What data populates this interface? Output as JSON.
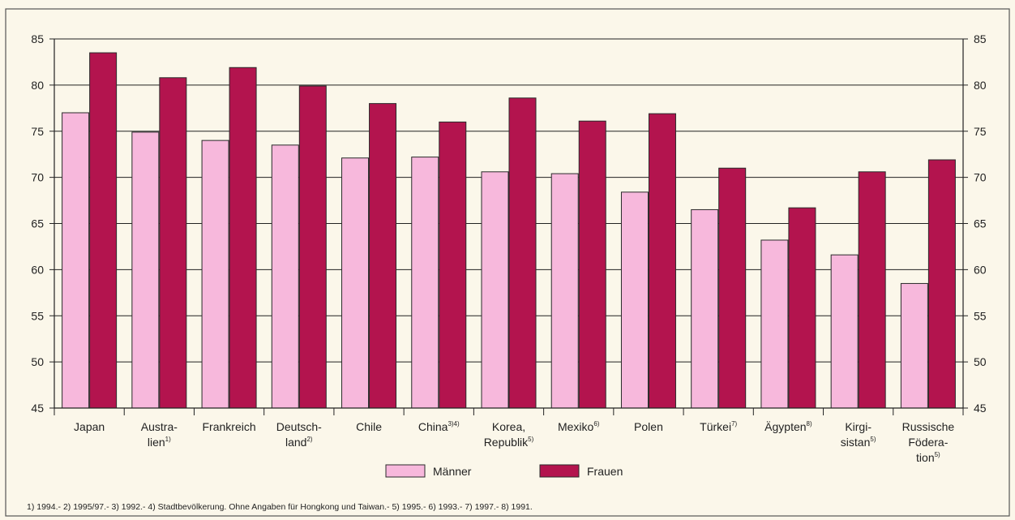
{
  "colors": {
    "maenner": "#f7b8dc",
    "frauen": "#b3144e",
    "background": "#fbf7ea",
    "grid": "#222222"
  },
  "chart_data": {
    "type": "bar",
    "title": "",
    "xlabel": "",
    "ylabel": "",
    "ylim": [
      45,
      85
    ],
    "y_ticks": [
      45,
      50,
      55,
      60,
      65,
      70,
      75,
      80,
      85
    ],
    "grid": true,
    "legend_placement": "bottom-center",
    "categories": [
      {
        "lines": [
          "Japan"
        ],
        "sup": ""
      },
      {
        "lines": [
          "Austra-",
          "lien"
        ],
        "sup": "1)"
      },
      {
        "lines": [
          "Frankreich"
        ],
        "sup": ""
      },
      {
        "lines": [
          "Deutsch-",
          "land"
        ],
        "sup": "2)"
      },
      {
        "lines": [
          "Chile"
        ],
        "sup": ""
      },
      {
        "lines": [
          "China"
        ],
        "sup": "3)4)"
      },
      {
        "lines": [
          "Korea,",
          "Republik"
        ],
        "sup": "5)"
      },
      {
        "lines": [
          "Mexiko"
        ],
        "sup": "6)"
      },
      {
        "lines": [
          "Polen"
        ],
        "sup": ""
      },
      {
        "lines": [
          "Türkei"
        ],
        "sup": "7)"
      },
      {
        "lines": [
          "Ägypten"
        ],
        "sup": "8)"
      },
      {
        "lines": [
          "Kirgi-",
          "sistan"
        ],
        "sup": "5)"
      },
      {
        "lines": [
          "Russische",
          "Födera-",
          "tion"
        ],
        "sup": "5)"
      }
    ],
    "series": [
      {
        "name": "Männer",
        "color_key": "maenner",
        "values": [
          77.0,
          74.9,
          74.0,
          73.5,
          72.1,
          72.2,
          70.6,
          70.4,
          68.4,
          66.5,
          63.2,
          61.6,
          58.5
        ]
      },
      {
        "name": "Frauen",
        "color_key": "frauen",
        "values": [
          83.5,
          80.8,
          81.9,
          79.9,
          78.0,
          76.0,
          78.6,
          76.1,
          76.9,
          71.0,
          66.7,
          70.6,
          71.9
        ]
      }
    ]
  },
  "footnote": "1) 1994.- 2) 1995/97.- 3) 1992.- 4) Stadtbevölkerung. Ohne Angaben für Hongkong und Taiwan.- 5) 1995.- 6) 1993.- 7) 1997.- 8) 1991."
}
